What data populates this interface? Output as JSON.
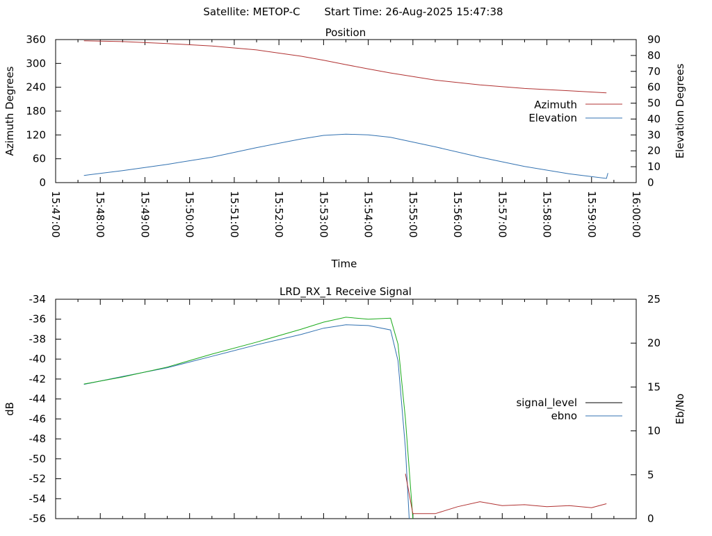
{
  "header": {
    "satellite_label": "Satellite: METOP-C",
    "start_time_label": "Start Time: 26-Aug-2025 15:47:38"
  },
  "chart_data": [
    {
      "type": "line",
      "title": "Position",
      "xlabel": "Time",
      "ylabel": "Azimuth Degrees",
      "y2label": "Elevation Degrees",
      "xlim": [
        "15:47:00",
        "16:00:00"
      ],
      "x_ticks": [
        "15:47:00",
        "15:48:00",
        "15:49:00",
        "15:50:00",
        "15:51:00",
        "15:52:00",
        "15:53:00",
        "15:54:00",
        "15:55:00",
        "15:56:00",
        "15:57:00",
        "15:58:00",
        "15:59:00",
        "16:00:00"
      ],
      "ylim": [
        0,
        360
      ],
      "y_ticks": [
        0,
        60,
        120,
        180,
        240,
        300,
        360
      ],
      "y2lim": [
        0,
        90
      ],
      "y2_ticks": [
        0,
        10,
        20,
        30,
        40,
        50,
        60,
        70,
        80,
        90
      ],
      "legend_position": "right",
      "series": [
        {
          "name": "Azimuth",
          "axis": "y",
          "color": "#b03030",
          "x": [
            "15:47:38",
            "15:48:30",
            "15:49:30",
            "15:50:30",
            "15:51:30",
            "15:52:30",
            "15:53:00",
            "15:53:30",
            "15:54:00",
            "15:54:30",
            "15:55:30",
            "15:56:30",
            "15:57:30",
            "15:58:30",
            "15:59:20"
          ],
          "values": [
            357,
            355,
            350,
            344,
            334,
            318,
            308,
            297,
            286,
            276,
            258,
            246,
            237,
            231,
            226
          ]
        },
        {
          "name": "Elevation",
          "axis": "y2",
          "color": "#3070b0",
          "x": [
            "15:47:38",
            "15:48:30",
            "15:49:30",
            "15:50:30",
            "15:51:30",
            "15:52:30",
            "15:53:00",
            "15:53:30",
            "15:54:00",
            "15:54:30",
            "15:55:30",
            "15:56:30",
            "15:57:30",
            "15:58:30",
            "15:59:20",
            "15:59:22"
          ],
          "values": [
            4.5,
            7.5,
            11.5,
            16,
            22,
            27.5,
            29.7,
            30.5,
            30,
            28.5,
            22.5,
            16,
            10.2,
            5.5,
            2.6,
            6
          ]
        }
      ]
    },
    {
      "type": "line",
      "title": "LRD_RX_1 Receive Signal",
      "ylabel": "dB",
      "y2label": "Eb/No",
      "xlim": [
        "15:47:00",
        "16:00:00"
      ],
      "ylim": [
        -56,
        -34
      ],
      "y_ticks": [
        -56,
        -54,
        -52,
        -50,
        -48,
        -46,
        -44,
        -42,
        -40,
        -38,
        -36,
        -34
      ],
      "y2lim": [
        0,
        25
      ],
      "y2_ticks": [
        0,
        5,
        10,
        15,
        20,
        25
      ],
      "legend_position": "right",
      "legend": [
        {
          "name": "signal_level",
          "color": "#000000"
        },
        {
          "name": "ebno",
          "color": "#3070b0"
        }
      ],
      "series": [
        {
          "name": "ebno",
          "axis": "y2",
          "color": "#3070b0",
          "x": [
            "15:47:38",
            "15:48:30",
            "15:49:30",
            "15:50:30",
            "15:51:30",
            "15:52:30",
            "15:53:00",
            "15:53:30",
            "15:54:00",
            "15:54:30",
            "15:54:40",
            "15:54:50",
            "15:54:55"
          ],
          "values": [
            15.3,
            16.2,
            17.2,
            18.5,
            19.8,
            21.0,
            21.7,
            22.1,
            22.0,
            21.5,
            18.0,
            8.0,
            0
          ]
        },
        {
          "color": "#1aaa1a",
          "axis": "y",
          "x": [
            "15:47:38",
            "15:48:30",
            "15:49:30",
            "15:50:30",
            "15:51:30",
            "15:52:30",
            "15:53:00",
            "15:53:30",
            "15:54:00",
            "15:54:30",
            "15:54:40",
            "15:54:50",
            "15:55:00"
          ],
          "values": [
            -42.5,
            -41.8,
            -40.8,
            -39.5,
            -38.3,
            -37.0,
            -36.3,
            -35.8,
            -36.0,
            -35.9,
            -38.5,
            -46.0,
            -56.0
          ]
        },
        {
          "color": "#b03030",
          "axis": "y",
          "x": [
            "15:54:50",
            "15:55:00",
            "15:55:30",
            "15:56:00",
            "15:56:30",
            "15:57:00",
            "15:57:30",
            "15:58:00",
            "15:58:30",
            "15:59:00",
            "15:59:20"
          ],
          "values": [
            -51.5,
            -55.5,
            -55.5,
            -54.8,
            -54.3,
            -54.7,
            -54.6,
            -54.8,
            -54.7,
            -54.9,
            -54.5
          ]
        }
      ]
    }
  ]
}
